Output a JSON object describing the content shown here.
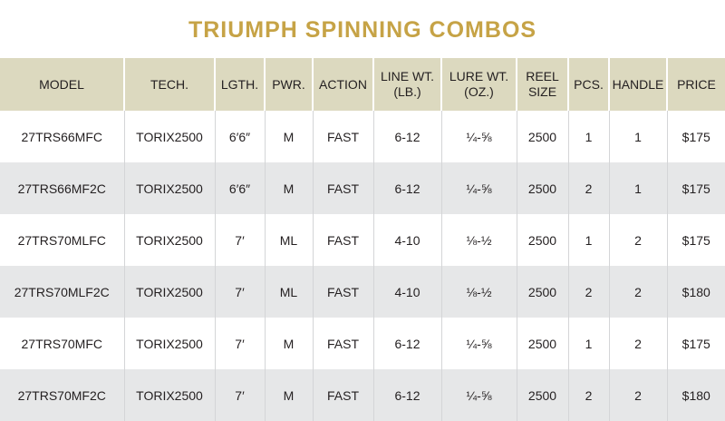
{
  "header": {
    "title": "TRIUMPH SPINNING COMBOS"
  },
  "table": {
    "columns": [
      [
        "MODEL"
      ],
      [
        "TECH."
      ],
      [
        "LGTH."
      ],
      [
        "PWR."
      ],
      [
        "ACTION"
      ],
      [
        "LINE WT.",
        "(LB.)"
      ],
      [
        "LURE WT.",
        "(OZ.)"
      ],
      [
        "REEL",
        "SIZE"
      ],
      [
        "PCS."
      ],
      [
        "HANDLE"
      ],
      [
        "PRICE"
      ]
    ],
    "rows": [
      [
        "27TRS66MFC",
        "TORIX2500",
        "6′6″",
        "M",
        "FAST",
        "6-12",
        "¼-⅝",
        "2500",
        "1",
        "1",
        "$175"
      ],
      [
        "27TRS66MF2C",
        "TORIX2500",
        "6′6″",
        "M",
        "FAST",
        "6-12",
        "¼-⅝",
        "2500",
        "2",
        "1",
        "$175"
      ],
      [
        "27TRS70MLFC",
        "TORIX2500",
        "7′",
        "ML",
        "FAST",
        "4-10",
        "⅛-½",
        "2500",
        "1",
        "2",
        "$175"
      ],
      [
        "27TRS70MLF2C",
        "TORIX2500",
        "7′",
        "ML",
        "FAST",
        "4-10",
        "⅛-½",
        "2500",
        "2",
        "2",
        "$180"
      ],
      [
        "27TRS70MFC",
        "TORIX2500",
        "7′",
        "M",
        "FAST",
        "6-12",
        "¼-⅝",
        "2500",
        "1",
        "2",
        "$175"
      ],
      [
        "27TRS70MF2C",
        "TORIX2500",
        "7′",
        "M",
        "FAST",
        "6-12",
        "¼-⅝",
        "2500",
        "2",
        "2",
        "$180"
      ]
    ]
  }
}
